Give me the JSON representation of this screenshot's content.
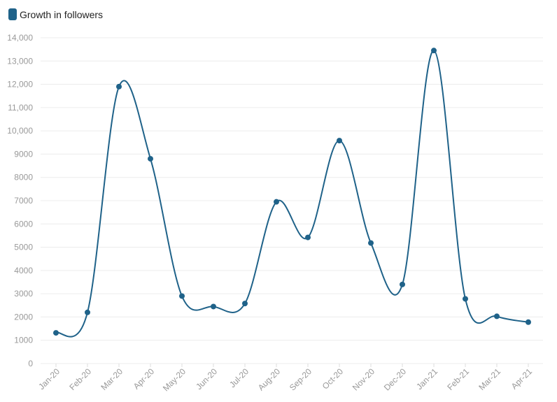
{
  "chart_data": {
    "type": "line",
    "title": "",
    "xlabel": "",
    "ylabel": "",
    "categories": [
      "Jan-20",
      "Feb-20",
      "Mar-20",
      "Apr-20",
      "May-20",
      "Jun-20",
      "Jul-20",
      "Aug-20",
      "Sep-20",
      "Oct-20",
      "Nov-20",
      "Dec-20",
      "Jan-21",
      "Feb-21",
      "Mar-21",
      "Apr-21"
    ],
    "series": [
      {
        "name": "Growth in followers",
        "color": "#1f6289",
        "values": [
          1320,
          2200,
          11900,
          8800,
          2900,
          2450,
          2580,
          6950,
          5420,
          9580,
          5180,
          3400,
          13450,
          2780,
          2030,
          1780
        ]
      }
    ],
    "ylim": [
      0,
      14000
    ],
    "yticks": [
      0,
      1000,
      2000,
      3000,
      4000,
      5000,
      6000,
      7000,
      8000,
      9000,
      10000,
      11000,
      12000,
      13000,
      14000
    ],
    "ytick_labels": [
      "0",
      "1000",
      "2000",
      "3000",
      "4000",
      "5000",
      "6000",
      "7000",
      "8000",
      "9000",
      "10,000",
      "11,000",
      "12,000",
      "13,000",
      "14,000"
    ],
    "grid": "horizontal",
    "legend": "top-left",
    "smooth": true
  }
}
